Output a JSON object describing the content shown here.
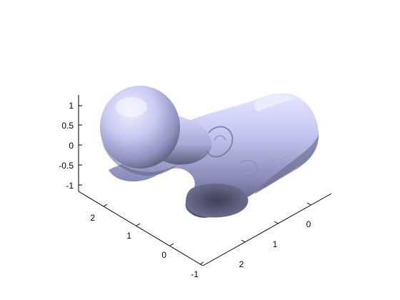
{
  "axes": {
    "z_ticks": [
      "1",
      "0.5",
      "0",
      "-0.5",
      "-1"
    ],
    "left_ticks": [
      "2",
      "1",
      "0",
      "-1"
    ],
    "right_ticks": [
      "2",
      "1",
      "0"
    ]
  },
  "colors": {
    "surface_light": "#e4e6ff",
    "surface_mid": "#b4b6e6",
    "surface_dark": "#4a4c64",
    "axis": "#000000",
    "background": "#ffffff"
  }
}
